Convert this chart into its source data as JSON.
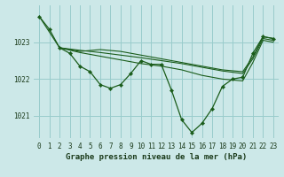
{
  "background_color": "#cce8e8",
  "plot_bg_color": "#cce8e8",
  "grid_color": "#99cccc",
  "line_color": "#1a5c1a",
  "marker_color": "#1a5c1a",
  "xlabel": "Graphe pression niveau de la mer (hPa)",
  "ylim": [
    1020.4,
    1024.0
  ],
  "xlim": [
    -0.5,
    23.5
  ],
  "yticks": [
    1021,
    1022,
    1023
  ],
  "xticks": [
    0,
    1,
    2,
    3,
    4,
    5,
    6,
    7,
    8,
    9,
    10,
    11,
    12,
    13,
    14,
    15,
    16,
    17,
    18,
    19,
    20,
    21,
    22,
    23
  ],
  "main_x": [
    0,
    1,
    2,
    3,
    4,
    5,
    6,
    7,
    8,
    9,
    10,
    11,
    12,
    13,
    14,
    15,
    16,
    17,
    18,
    19,
    20,
    21,
    22,
    23
  ],
  "main_y": [
    1023.7,
    1023.35,
    1022.85,
    1022.7,
    1022.35,
    1022.2,
    1021.85,
    1021.75,
    1021.85,
    1022.15,
    1022.5,
    1022.4,
    1022.4,
    1021.7,
    1020.9,
    1020.55,
    1020.8,
    1021.2,
    1021.8,
    1022.0,
    1022.05,
    1022.7,
    1023.15,
    1023.1
  ],
  "line2_x": [
    0,
    2,
    4,
    6,
    8,
    10,
    12,
    14,
    16,
    18,
    20,
    21,
    22,
    23
  ],
  "line2_y": [
    1023.7,
    1022.85,
    1022.75,
    1022.8,
    1022.75,
    1022.65,
    1022.55,
    1022.45,
    1022.35,
    1022.25,
    1022.2,
    1022.6,
    1023.15,
    1023.1
  ],
  "line3_x": [
    2,
    4,
    6,
    8,
    10,
    12,
    14,
    16,
    18,
    20,
    21,
    22,
    23
  ],
  "line3_y": [
    1022.85,
    1022.78,
    1022.72,
    1022.65,
    1022.58,
    1022.5,
    1022.42,
    1022.32,
    1022.22,
    1022.15,
    1022.55,
    1023.1,
    1023.05
  ],
  "line4_x": [
    2,
    4,
    6,
    8,
    10,
    12,
    14,
    16,
    18,
    20,
    21,
    22,
    23
  ],
  "line4_y": [
    1022.85,
    1022.72,
    1022.62,
    1022.52,
    1022.42,
    1022.35,
    1022.25,
    1022.1,
    1022.0,
    1021.95,
    1022.45,
    1023.05,
    1023.0
  ],
  "font_family": "monospace",
  "tick_fontsize": 5.5,
  "label_fontsize": 6.5
}
